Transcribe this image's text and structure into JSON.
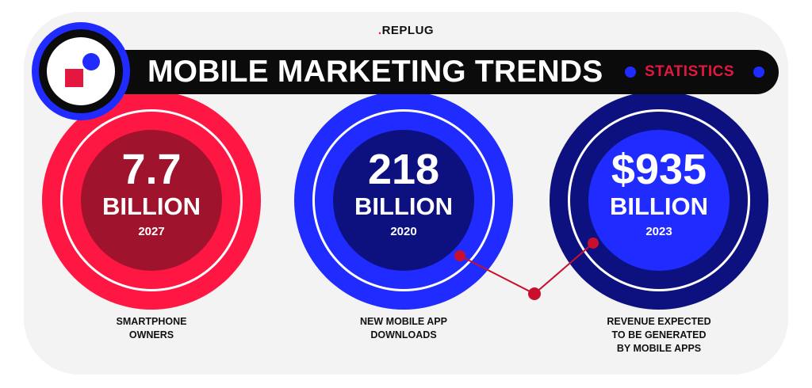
{
  "brand": {
    "prefix": ".",
    "name": "REPLUG"
  },
  "header": {
    "title": "MOBILE MARKETING TRENDS",
    "subtitle": "STATISTICS"
  },
  "stats": [
    {
      "value": "7.7",
      "unit": "BILLION",
      "year": "2027",
      "caption_lines": [
        "SMARTPHONE",
        "OWNERS"
      ]
    },
    {
      "value": "218",
      "unit": "BILLION",
      "year": "2020",
      "caption_lines": [
        "NEW MOBILE APP",
        "DOWNLOADS"
      ]
    },
    {
      "value": "$935",
      "unit": "BILLION",
      "year": "2023",
      "caption_lines": [
        "REVENUE EXPECTED",
        "TO BE GENERATED",
        "BY MOBILE APPS"
      ]
    }
  ],
  "colors": {
    "red": "#ff1744",
    "dark_red": "#a0132c",
    "blue": "#1f2bff",
    "navy": "#0d1180",
    "dark": "#0b0b0b",
    "background": "#f3f3f3"
  }
}
